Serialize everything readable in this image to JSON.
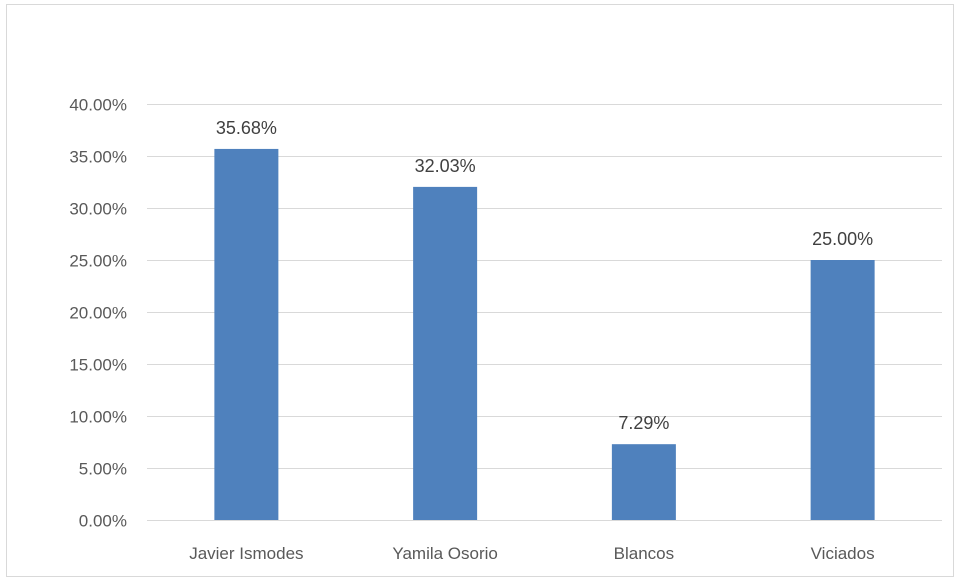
{
  "chart_data": {
    "type": "bar",
    "title": "",
    "xlabel": "",
    "ylabel": "",
    "categories": [
      "Javier Ismodes",
      "Yamila Osorio",
      "Blancos",
      "Viciados"
    ],
    "values": [
      35.68,
      32.03,
      7.29,
      25.0
    ],
    "data_labels": [
      "35.68%",
      "32.03%",
      "7.29%",
      "25.00%"
    ],
    "ylim": [
      0,
      40
    ],
    "y_ticks": [
      0,
      5,
      10,
      15,
      20,
      25,
      30,
      35,
      40
    ],
    "y_tick_labels": [
      "0.00%",
      "5.00%",
      "10.00%",
      "15.00%",
      "20.00%",
      "25.00%",
      "30.00%",
      "35.00%",
      "40.00%"
    ],
    "grid": true,
    "legend": "none",
    "colors": {
      "bar": "#4f81bd",
      "grid": "#d9d9d9",
      "axis_text": "#595959",
      "label_text": "#404040"
    }
  }
}
